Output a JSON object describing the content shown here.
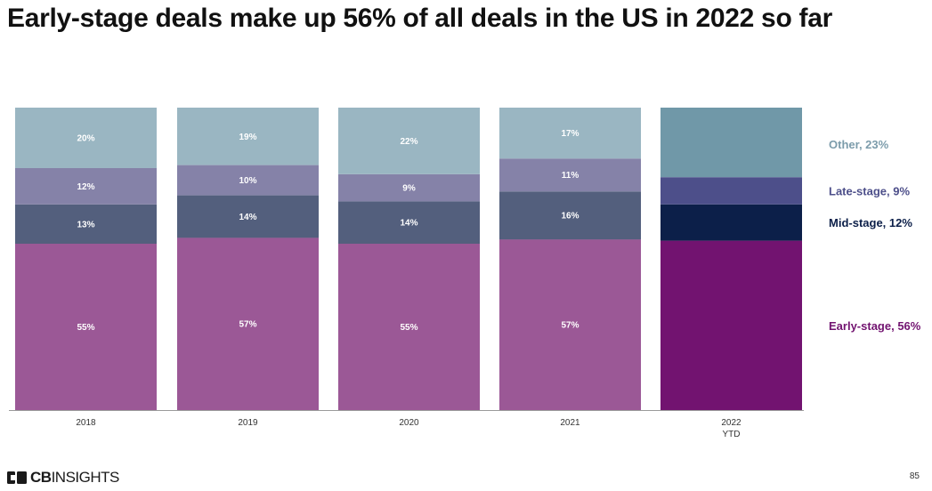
{
  "title": "Early-stage deals make up 56% of all deals in the US in 2022 so far",
  "chart_data": {
    "type": "bar",
    "stacked": true,
    "normalized": true,
    "categories": [
      {
        "label": "2018",
        "sublabel": ""
      },
      {
        "label": "2019",
        "sublabel": ""
      },
      {
        "label": "2020",
        "sublabel": ""
      },
      {
        "label": "2021",
        "sublabel": ""
      },
      {
        "label": "2022",
        "sublabel": "YTD"
      }
    ],
    "series": [
      {
        "name": "Early-stage",
        "values": [
          55,
          57,
          55,
          57,
          56
        ],
        "labels": [
          "55%",
          "57%",
          "55%",
          "57%",
          ""
        ],
        "color": "#9b5896",
        "highlight_color": "#721370"
      },
      {
        "name": "Mid-stage",
        "values": [
          13,
          14,
          14,
          16,
          12
        ],
        "labels": [
          "13%",
          "14%",
          "14%",
          "16%",
          ""
        ],
        "color": "#535f7d",
        "highlight_color": "#0c1f49"
      },
      {
        "name": "Late-stage",
        "values": [
          12,
          10,
          9,
          11,
          9
        ],
        "labels": [
          "12%",
          "10%",
          "9%",
          "11%",
          ""
        ],
        "color": "#8582a8",
        "highlight_color": "#4d4f8a"
      },
      {
        "name": "Other",
        "values": [
          20,
          19,
          22,
          17,
          23
        ],
        "labels": [
          "20%",
          "19%",
          "22%",
          "17%",
          ""
        ],
        "color": "#9ab6c2",
        "highlight_color": "#7098a8"
      }
    ],
    "legend": [
      {
        "text": "Other, 23%",
        "color": "#7c9cab"
      },
      {
        "text": "Late-stage, 9%",
        "color": "#4d4f8a"
      },
      {
        "text": "Mid-stage, 12%",
        "color": "#0c1f49"
      },
      {
        "text": "Early-stage, 56%",
        "color": "#721370"
      }
    ],
    "ylim": [
      0,
      100
    ],
    "xlabel": "",
    "ylabel": ""
  },
  "footer": {
    "brand_bold": "CB",
    "brand_rest": "INSIGHTS",
    "page_number": "85"
  }
}
